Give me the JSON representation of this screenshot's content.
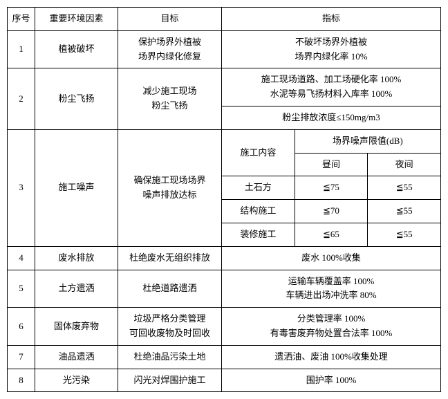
{
  "headers": {
    "seq": "序号",
    "factor": "重要环境因素",
    "target": "目标",
    "indicator": "指标"
  },
  "r1": {
    "seq": "1",
    "factor": "植被破坏",
    "target_l1": "保护场界外植被",
    "target_l2": "场界内绿化修复",
    "ind_l1": "不破坏场界外植被",
    "ind_l2": "场界内绿化率 10%"
  },
  "r2": {
    "seq": "2",
    "factor": "粉尘飞扬",
    "target_l1": "减少施工现场",
    "target_l2": "粉尘飞扬",
    "ind1_l1": "施工现场道路、加工场硬化率 100%",
    "ind1_l2": "水泥等易飞扬材料入库率 100%",
    "ind2": "粉尘排放浓度≤150mg/m3"
  },
  "r3": {
    "seq": "3",
    "factor": "施工噪声",
    "target_l1": "确保施工现场场界",
    "target_l2": "噪声排放达标",
    "sub_content": "施工内容",
    "sub_limit": "场界噪声限值(dB)",
    "sub_day": "昼间",
    "sub_night": "夜间",
    "row_a": {
      "name": "土石方",
      "day": "≦75",
      "night": "≦55"
    },
    "row_b": {
      "name": "结构施工",
      "day": "≦70",
      "night": "≦55"
    },
    "row_c": {
      "name": "装修施工",
      "day": "≦65",
      "night": "≦55"
    }
  },
  "r4": {
    "seq": "4",
    "factor": "废水排放",
    "target": "杜绝废水无组织排放",
    "indicator": "废水 100%收集"
  },
  "r5": {
    "seq": "5",
    "factor": "土方遗洒",
    "target": "杜绝道路遗洒",
    "ind_l1": "运输车辆覆盖率 100%",
    "ind_l2": "车辆进出场冲洗率 80%"
  },
  "r6": {
    "seq": "6",
    "factor": "固体废弃物",
    "target_l1": "垃圾严格分类管理",
    "target_l2": "可回收废物及时回收",
    "ind_l1": "分类管理率 100%",
    "ind_l2": "有毒害废弃物处置合法率 100%"
  },
  "r7": {
    "seq": "7",
    "factor": "油品遗洒",
    "target": "杜绝油品污染土地",
    "indicator": "遗洒油、废油 100%收集处理"
  },
  "r8": {
    "seq": "8",
    "factor": "光污染",
    "target": "闪光对焊围护施工",
    "indicator": "围护率 100%"
  }
}
